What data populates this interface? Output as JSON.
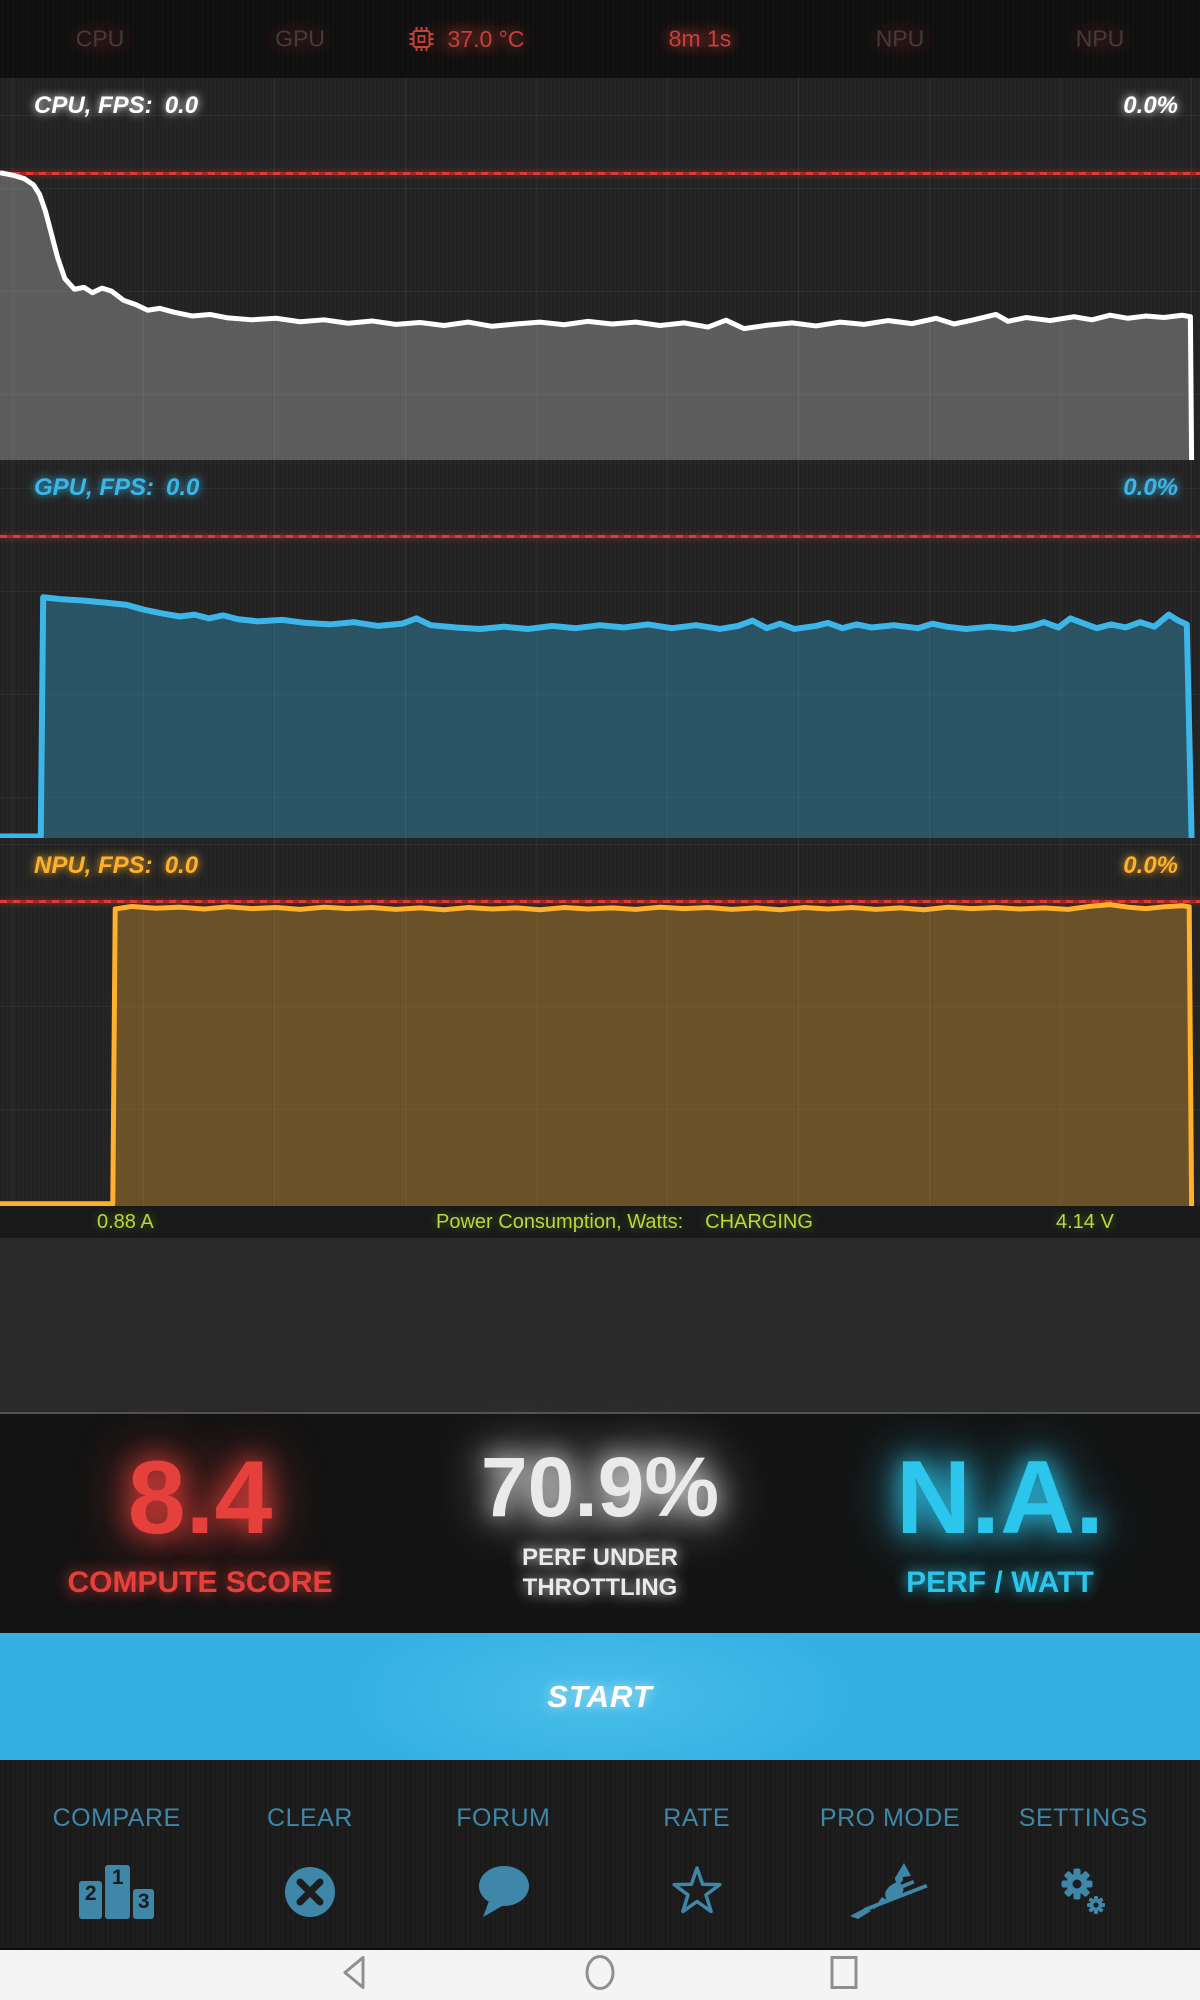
{
  "status_bar": {
    "cpu": "CPU",
    "gpu": "GPU",
    "temperature": "37.0 °C",
    "elapsed": "8m 1s",
    "npu_a": "NPU",
    "npu_b": "NPU",
    "dim_color": "#423c3c",
    "alert_color": "#c2423c"
  },
  "chart_data": [
    {
      "id": "cpu",
      "type": "area",
      "title": "CPU, FPS:",
      "current_fps": "0.0",
      "right_percent": "0.0%",
      "line_color": "#ffffff",
      "fill_color": "rgba(255,255,255,0.26)",
      "line_width": 5,
      "red_line_pct": 24.6,
      "points": [
        [
          0,
          24.8
        ],
        [
          1,
          25.4
        ],
        [
          2,
          26.3
        ],
        [
          2.8,
          28
        ],
        [
          3.3,
          30.5
        ],
        [
          3.8,
          35
        ],
        [
          4.3,
          41
        ],
        [
          4.8,
          47
        ],
        [
          5.4,
          52.5
        ],
        [
          6.2,
          55.3
        ],
        [
          7,
          54.8
        ],
        [
          7.7,
          56.2
        ],
        [
          8.5,
          55
        ],
        [
          9.3,
          55.8
        ],
        [
          10.3,
          58.2
        ],
        [
          11.3,
          59.3
        ],
        [
          12.3,
          60.8
        ],
        [
          13.3,
          60.3
        ],
        [
          14.5,
          61.3
        ],
        [
          16,
          62.3
        ],
        [
          17.5,
          61.9
        ],
        [
          19,
          62.8
        ],
        [
          21,
          63.3
        ],
        [
          23,
          62.9
        ],
        [
          25,
          63.8
        ],
        [
          27,
          63.3
        ],
        [
          29,
          64.2
        ],
        [
          31,
          63.6
        ],
        [
          33,
          64.5
        ],
        [
          35,
          64
        ],
        [
          37,
          64.8
        ],
        [
          39,
          63.9
        ],
        [
          41,
          65
        ],
        [
          43,
          64.4
        ],
        [
          45,
          63.9
        ],
        [
          47,
          64.6
        ],
        [
          49,
          63.7
        ],
        [
          51,
          64.4
        ],
        [
          53,
          63.9
        ],
        [
          55,
          64.8
        ],
        [
          57,
          64.1
        ],
        [
          59,
          65.2
        ],
        [
          60.5,
          63.4
        ],
        [
          62,
          65.6
        ],
        [
          64,
          64.7
        ],
        [
          66,
          64.1
        ],
        [
          68,
          64.9
        ],
        [
          70,
          63.9
        ],
        [
          72,
          64.5
        ],
        [
          74,
          63.5
        ],
        [
          76,
          64.3
        ],
        [
          78,
          62.9
        ],
        [
          79.5,
          64.4
        ],
        [
          81,
          63.4
        ],
        [
          83,
          61.9
        ],
        [
          84,
          63.7
        ],
        [
          85.5,
          62.7
        ],
        [
          87.5,
          63.5
        ],
        [
          89.5,
          62.5
        ],
        [
          91,
          63.3
        ],
        [
          92.5,
          62.1
        ],
        [
          94,
          62.9
        ],
        [
          95.5,
          62.3
        ],
        [
          97,
          62.7
        ],
        [
          98.5,
          62.1
        ],
        [
          99.2,
          62.5
        ],
        [
          99.3,
          100
        ]
      ]
    },
    {
      "id": "gpu",
      "type": "area",
      "title": "GPU, FPS:",
      "current_fps": "0.0",
      "right_percent": "0.0%",
      "line_color": "#3cb6e8",
      "fill_color": "rgba(58,181,232,0.33)",
      "line_width": 6,
      "red_line_pct": 19.8,
      "points": [
        [
          0,
          99.6
        ],
        [
          3.4,
          99.6
        ],
        [
          3.6,
          36.3
        ],
        [
          5,
          36.8
        ],
        [
          7,
          37.2
        ],
        [
          9,
          37.8
        ],
        [
          10.5,
          38.3
        ],
        [
          12,
          39.6
        ],
        [
          13.5,
          40.6
        ],
        [
          15,
          41.4
        ],
        [
          16.2,
          40.9
        ],
        [
          17.4,
          41.9
        ],
        [
          18.6,
          41.1
        ],
        [
          19.8,
          42.1
        ],
        [
          21.5,
          42.7
        ],
        [
          23.5,
          42.3
        ],
        [
          25.5,
          43.1
        ],
        [
          27.5,
          43.5
        ],
        [
          29.5,
          42.9
        ],
        [
          31.5,
          43.9
        ],
        [
          33.5,
          43.3
        ],
        [
          34.7,
          41.9
        ],
        [
          35.9,
          43.7
        ],
        [
          38,
          44.3
        ],
        [
          40,
          44.7
        ],
        [
          42,
          44.1
        ],
        [
          44,
          44.7
        ],
        [
          46,
          43.9
        ],
        [
          48,
          44.5
        ],
        [
          50,
          43.7
        ],
        [
          52,
          44.3
        ],
        [
          54,
          43.5
        ],
        [
          56,
          44.5
        ],
        [
          58,
          43.7
        ],
        [
          60,
          44.7
        ],
        [
          61.5,
          43.9
        ],
        [
          62.7,
          42.5
        ],
        [
          63.9,
          44.5
        ],
        [
          65,
          43.3
        ],
        [
          66.2,
          44.7
        ],
        [
          68,
          43.9
        ],
        [
          69,
          43.1
        ],
        [
          70.2,
          44.5
        ],
        [
          71.4,
          43.5
        ],
        [
          72.6,
          44.3
        ],
        [
          74.5,
          43.7
        ],
        [
          76.5,
          44.5
        ],
        [
          77.7,
          43.3
        ],
        [
          78.9,
          44.1
        ],
        [
          80.5,
          44.7
        ],
        [
          82.5,
          44.1
        ],
        [
          84.5,
          44.7
        ],
        [
          86,
          43.9
        ],
        [
          87,
          42.9
        ],
        [
          88.2,
          44.3
        ],
        [
          89.2,
          41.9
        ],
        [
          90.2,
          43.1
        ],
        [
          91.4,
          44.5
        ],
        [
          92.6,
          43.5
        ],
        [
          93.8,
          44.3
        ],
        [
          95,
          42.9
        ],
        [
          96.2,
          44.1
        ],
        [
          97.4,
          40.9
        ],
        [
          98.2,
          42.5
        ],
        [
          98.9,
          43.5
        ],
        [
          99.3,
          100
        ]
      ]
    },
    {
      "id": "npu",
      "type": "area",
      "title": "NPU, FPS:",
      "current_fps": "0.0",
      "right_percent": "0.0%",
      "line_color": "#ffb02c",
      "fill_color": "rgba(255,176,46,0.32)",
      "line_width": 5,
      "red_line_pct": 16.8,
      "points": [
        [
          0,
          99.4
        ],
        [
          9.4,
          99.4
        ],
        [
          9.6,
          19.3
        ],
        [
          11,
          18.6
        ],
        [
          13,
          19.1
        ],
        [
          15,
          18.8
        ],
        [
          17,
          19.3
        ],
        [
          19,
          18.7
        ],
        [
          21,
          19.2
        ],
        [
          23,
          18.9
        ],
        [
          25,
          19.4
        ],
        [
          27,
          18.8
        ],
        [
          29,
          19.2
        ],
        [
          31,
          18.9
        ],
        [
          33,
          19.4
        ],
        [
          35,
          19
        ],
        [
          37,
          19.5
        ],
        [
          39,
          18.9
        ],
        [
          41,
          19.3
        ],
        [
          43,
          19
        ],
        [
          45,
          19.5
        ],
        [
          47,
          18.9
        ],
        [
          49,
          19.3
        ],
        [
          51,
          19
        ],
        [
          53,
          19.4
        ],
        [
          55,
          18.8
        ],
        [
          57,
          19.2
        ],
        [
          59,
          18.9
        ],
        [
          61,
          19.4
        ],
        [
          63,
          19
        ],
        [
          65,
          19.5
        ],
        [
          67,
          18.9
        ],
        [
          69,
          19.3
        ],
        [
          71,
          18.9
        ],
        [
          73,
          19.4
        ],
        [
          75,
          19
        ],
        [
          77,
          19.5
        ],
        [
          79,
          18.8
        ],
        [
          81,
          19.2
        ],
        [
          83,
          18.9
        ],
        [
          85,
          19.3
        ],
        [
          87,
          19
        ],
        [
          89,
          19.4
        ],
        [
          91,
          18.5
        ],
        [
          92.5,
          18.1
        ],
        [
          94,
          18.8
        ],
        [
          95.5,
          19.2
        ],
        [
          97,
          18.7
        ],
        [
          98.5,
          18.4
        ],
        [
          99.1,
          18.7
        ],
        [
          99.3,
          100
        ]
      ]
    }
  ],
  "power_bar": {
    "current": "0.88 A",
    "label": "Power Consumption, Watts:",
    "status": "CHARGING",
    "voltage": "4.14 V",
    "text_color": "#b6d93c"
  },
  "scores": {
    "compute": {
      "value": "8.4",
      "label": "COMPUTE SCORE",
      "color": "#e5403c"
    },
    "throttling": {
      "value": "70.9%",
      "label_line1": "PERF UNDER",
      "label_line2": "THROTTLING",
      "color": "#eaeaea"
    },
    "perf_watt": {
      "value": "N.A.",
      "label": "PERF / WATT",
      "color": "#2cc6ec"
    }
  },
  "start_button": {
    "label": "START",
    "color": "#36b1e2"
  },
  "toolbar": {
    "accent": "#3e87a9",
    "items": [
      {
        "label": "COMPARE",
        "icon": "podium-icon",
        "podium_numbers": [
          "2",
          "1",
          "3"
        ]
      },
      {
        "label": "CLEAR",
        "icon": "clear-icon"
      },
      {
        "label": "FORUM",
        "icon": "forum-icon"
      },
      {
        "label": "RATE",
        "icon": "star-icon"
      },
      {
        "label": "PRO MODE",
        "icon": "witch-icon"
      },
      {
        "label": "SETTINGS",
        "icon": "gears-icon"
      }
    ]
  },
  "nav_bar": {
    "icon_color": "#8f8f8f",
    "background": "#f4f4f4"
  }
}
